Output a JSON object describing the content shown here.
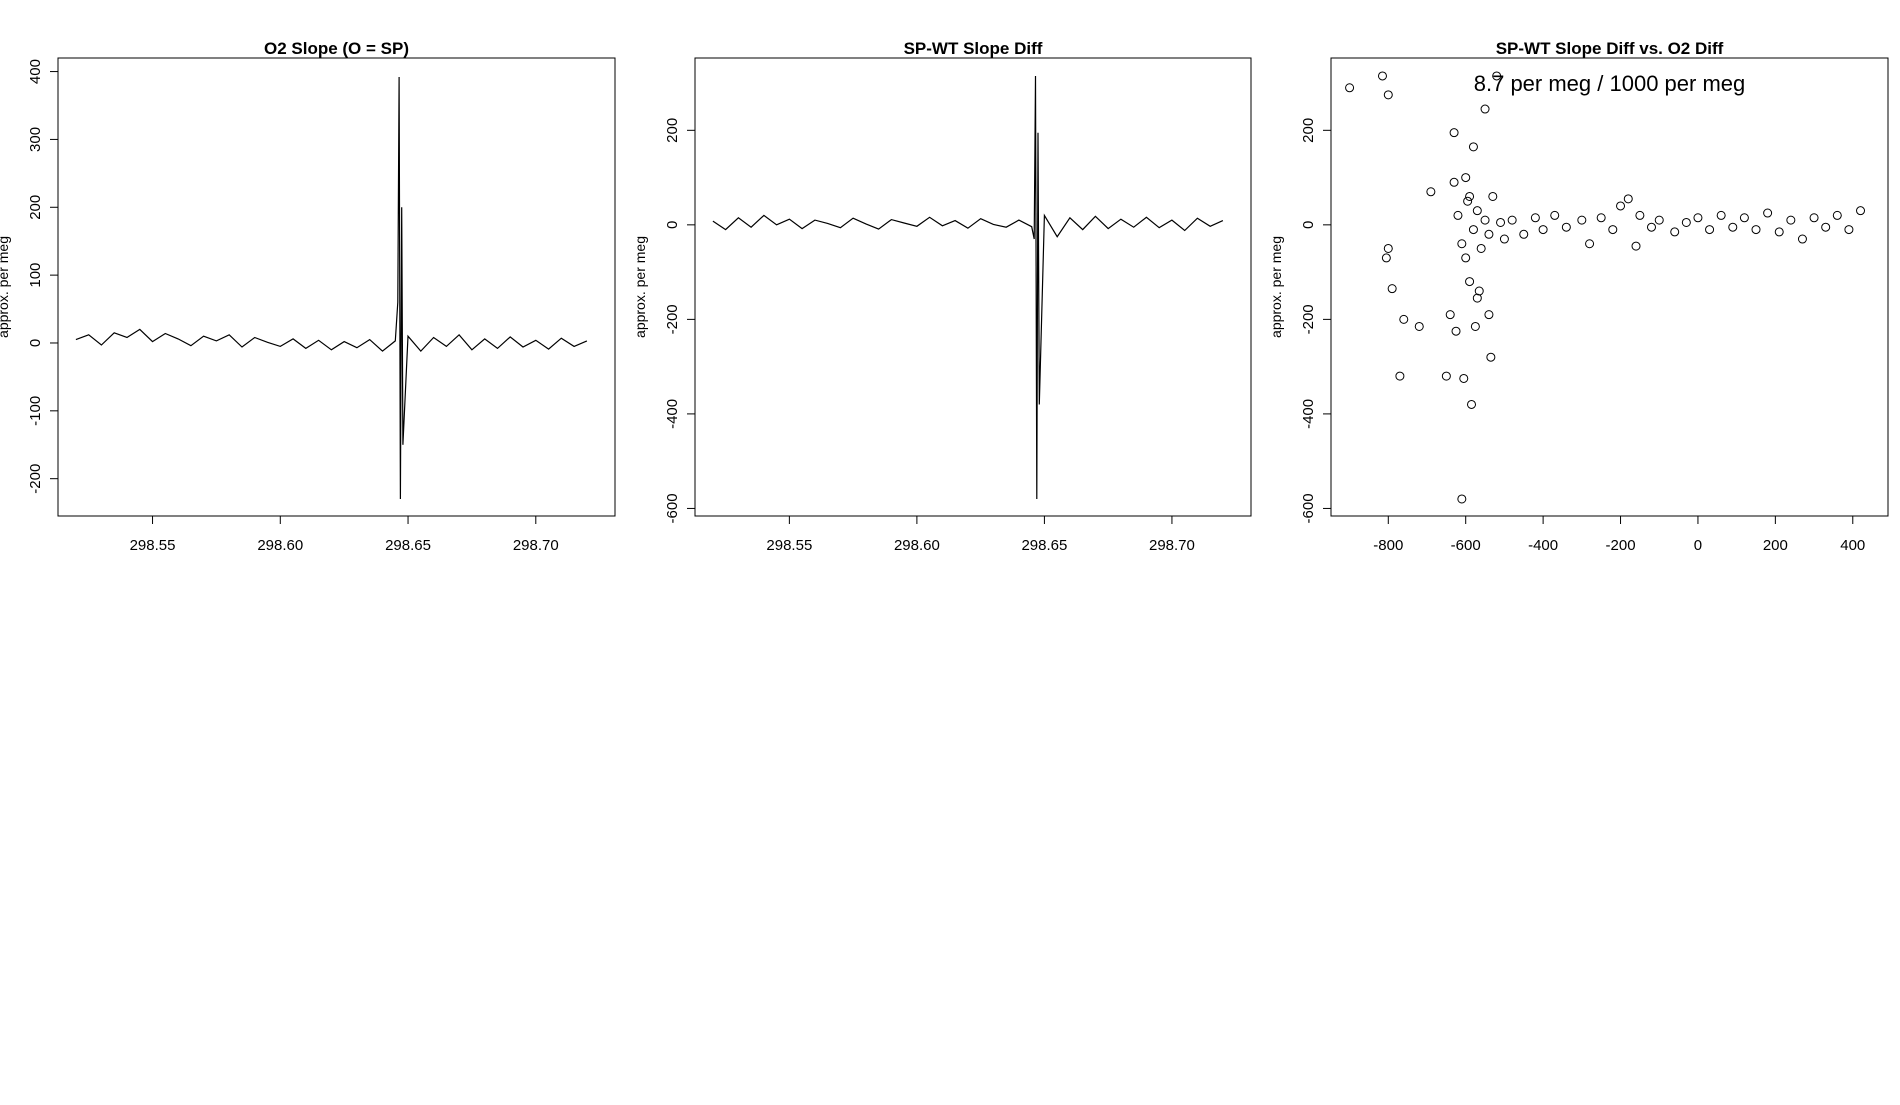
{
  "chart_data": [
    {
      "type": "line",
      "title": "O2 Slope (O = SP)",
      "y_label": "approx. per meg",
      "color": "#000000",
      "x": [
        298.52,
        298.525,
        298.53,
        298.535,
        298.54,
        298.545,
        298.55,
        298.555,
        298.56,
        298.565,
        298.57,
        298.575,
        298.58,
        298.585,
        298.59,
        298.595,
        298.6,
        298.605,
        298.61,
        298.615,
        298.62,
        298.625,
        298.63,
        298.635,
        298.64,
        298.645,
        298.646,
        298.6465,
        298.647,
        298.6475,
        298.648,
        298.65,
        298.655,
        298.66,
        298.665,
        298.67,
        298.675,
        298.68,
        298.685,
        298.69,
        298.695,
        298.7,
        298.705,
        298.71,
        298.715,
        298.72
      ],
      "values": [
        5,
        12,
        -3,
        15,
        8,
        20,
        2,
        14,
        6,
        -4,
        10,
        3,
        12,
        -6,
        8,
        1,
        -5,
        6,
        -8,
        4,
        -10,
        2,
        -7,
        5,
        -12,
        3,
        60,
        392,
        -230,
        200,
        -150,
        10,
        -12,
        8,
        -5,
        12,
        -10,
        6,
        -8,
        9,
        -6,
        4,
        -9,
        7,
        -5,
        3
      ],
      "xlim": [
        298.513,
        298.731
      ],
      "xticks": [
        {
          "value": 298.55,
          "label": "298.55"
        },
        {
          "value": 298.6,
          "label": "298.60"
        },
        {
          "value": 298.65,
          "label": "298.65"
        },
        {
          "value": 298.7,
          "label": "298.70"
        }
      ],
      "ylim": [
        -255,
        420
      ],
      "yticks": [
        -200,
        -100,
        0,
        100,
        200,
        300,
        400
      ]
    },
    {
      "type": "line",
      "title": "SP-WT Slope Diff",
      "y_label": "approx. per meg",
      "color": "#000000",
      "x": [
        298.52,
        298.525,
        298.53,
        298.535,
        298.54,
        298.545,
        298.55,
        298.555,
        298.56,
        298.565,
        298.57,
        298.575,
        298.58,
        298.585,
        298.59,
        298.595,
        298.6,
        298.605,
        298.61,
        298.615,
        298.62,
        298.625,
        298.63,
        298.635,
        298.64,
        298.645,
        298.646,
        298.6465,
        298.647,
        298.6475,
        298.648,
        298.65,
        298.655,
        298.66,
        298.665,
        298.67,
        298.675,
        298.68,
        298.685,
        298.69,
        298.695,
        298.7,
        298.705,
        298.71,
        298.715,
        298.72
      ],
      "values": [
        8,
        -10,
        15,
        -5,
        20,
        0,
        12,
        -8,
        10,
        3,
        -6,
        14,
        2,
        -9,
        11,
        4,
        -3,
        16,
        -2,
        9,
        -7,
        13,
        1,
        -5,
        10,
        -4,
        -30,
        315,
        -580,
        195,
        -380,
        20,
        -25,
        15,
        -10,
        18,
        -8,
        12,
        -5,
        16,
        -6,
        10,
        -12,
        14,
        -3,
        9
      ],
      "xlim": [
        298.513,
        298.731
      ],
      "xticks": [
        {
          "value": 298.55,
          "label": "298.55"
        },
        {
          "value": 298.6,
          "label": "298.60"
        },
        {
          "value": 298.65,
          "label": "298.65"
        },
        {
          "value": 298.7,
          "label": "298.70"
        }
      ],
      "ylim": [
        -616,
        353
      ],
      "yticks": [
        -600,
        -400,
        -200,
        0,
        200
      ]
    },
    {
      "type": "scatter",
      "title": "SP-WT Slope Diff vs. O2 Diff",
      "y_label": "approx. per meg",
      "annotation": "8.7 per meg / 1000 per meg",
      "color": "#000000",
      "x": [
        -900,
        -815,
        -800,
        -800,
        -805,
        -790,
        -760,
        -770,
        -720,
        -690,
        -650,
        -640,
        -630,
        -625,
        -610,
        -605,
        -600,
        -595,
        -590,
        -585,
        -580,
        -575,
        -570,
        -565,
        -550,
        -540,
        -535,
        -520,
        -630,
        -620,
        -610,
        -600,
        -590,
        -580,
        -570,
        -560,
        -550,
        -540,
        -530,
        -510,
        -500,
        -480,
        -450,
        -420,
        -400,
        -370,
        -340,
        -300,
        -280,
        -250,
        -220,
        -200,
        -180,
        -160,
        -150,
        -120,
        -100,
        -60,
        -30,
        0,
        30,
        60,
        90,
        120,
        150,
        180,
        210,
        240,
        270,
        300,
        330,
        360,
        390,
        420
      ],
      "values": [
        290,
        315,
        275,
        -50,
        -70,
        -135,
        -200,
        -320,
        -215,
        70,
        -320,
        -190,
        195,
        -225,
        -580,
        -325,
        100,
        50,
        -120,
        -380,
        165,
        -215,
        -155,
        -140,
        245,
        -190,
        -280,
        315,
        90,
        20,
        -40,
        -70,
        60,
        -10,
        30,
        -50,
        10,
        -20,
        60,
        5,
        -30,
        10,
        -20,
        15,
        -10,
        20,
        -5,
        10,
        -40,
        15,
        -10,
        40,
        55,
        -45,
        20,
        -5,
        10,
        -15,
        5,
        15,
        -10,
        20,
        -5,
        15,
        -10,
        25,
        -15,
        10,
        -30,
        15,
        -5,
        20,
        -10,
        30
      ],
      "xlim": [
        -948,
        491
      ],
      "xticks": [
        -800,
        -600,
        -400,
        -200,
        0,
        200,
        400
      ],
      "ylim": [
        -616,
        353
      ],
      "yticks": [
        -600,
        -400,
        -200,
        0,
        200
      ]
    }
  ]
}
